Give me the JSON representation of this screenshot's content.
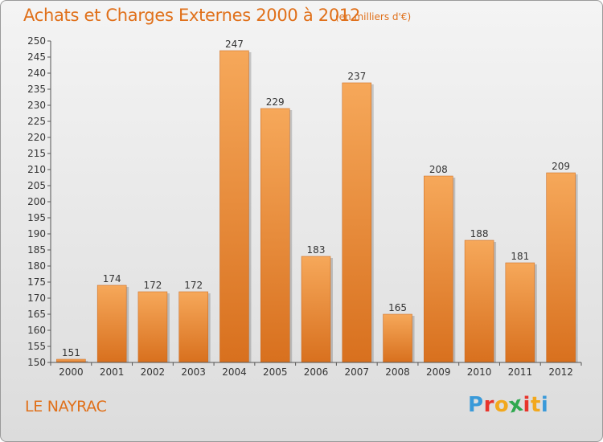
{
  "header": {
    "title": "Achats et Charges Externes 2000 à 2012",
    "subtitle": "(en milliers d'€)"
  },
  "footer": {
    "commune": "LE NAYRAC",
    "brand": "Proxiti",
    "brand_colors": [
      "#3a9ad9",
      "#e8342b",
      "#f2a81d",
      "#2fa84f",
      "#e8342b",
      "#f2a81d",
      "#3a9ad9"
    ]
  },
  "colors": {
    "accent": "#e0701a",
    "bar_light": "#f6a85a",
    "bar_dark": "#d8701e"
  },
  "chart_data": {
    "type": "bar",
    "categories": [
      "2000",
      "2001",
      "2002",
      "2003",
      "2004",
      "2005",
      "2006",
      "2007",
      "2008",
      "2009",
      "2010",
      "2011",
      "2012"
    ],
    "values": [
      151,
      174,
      172,
      172,
      247,
      229,
      183,
      237,
      165,
      208,
      188,
      181,
      209
    ],
    "title": "Achats et Charges Externes 2000 à 2012",
    "xlabel": "",
    "ylabel": "",
    "ylim": [
      150,
      250
    ],
    "yticks": [
      150,
      155,
      160,
      165,
      170,
      175,
      180,
      185,
      190,
      195,
      200,
      205,
      210,
      215,
      220,
      225,
      230,
      235,
      240,
      245,
      250
    ],
    "grid": false,
    "data_labels": true
  }
}
